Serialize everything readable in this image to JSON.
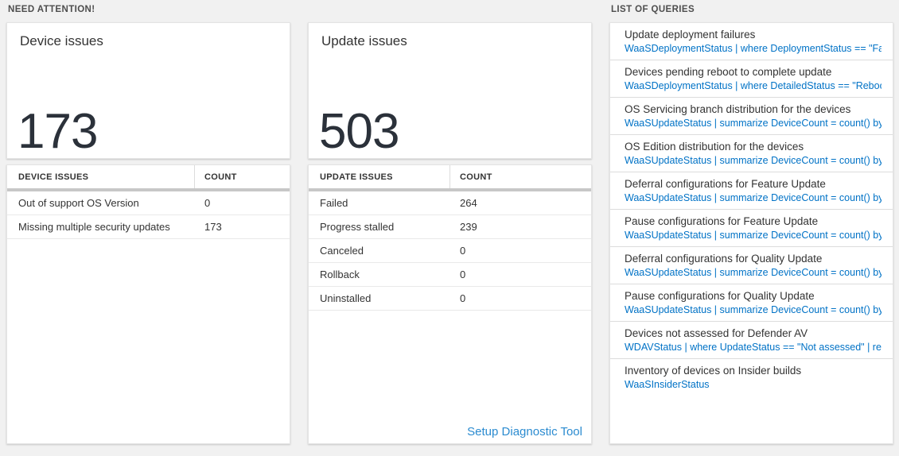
{
  "sections": {
    "need_attention": {
      "label": "NEED ATTENTION!",
      "device_card": {
        "title": "Device issues",
        "value": "173",
        "table": {
          "headers": [
            "DEVICE ISSUES",
            "COUNT"
          ],
          "rows": [
            {
              "label": "Out of support OS Version",
              "count": "0"
            },
            {
              "label": "Missing multiple security updates",
              "count": "173"
            }
          ]
        }
      },
      "update_card": {
        "title": "Update issues",
        "value": "503",
        "table": {
          "headers": [
            "UPDATE ISSUES",
            "COUNT"
          ],
          "rows": [
            {
              "label": "Failed",
              "count": "264"
            },
            {
              "label": "Progress stalled",
              "count": "239"
            },
            {
              "label": "Canceled",
              "count": "0"
            },
            {
              "label": "Rollback",
              "count": "0"
            },
            {
              "label": "Uninstalled",
              "count": "0"
            }
          ]
        },
        "footer_link": "Setup Diagnostic Tool"
      }
    },
    "queries": {
      "label": "LIST OF QUERIES",
      "items": [
        {
          "title": "Update deployment failures",
          "query": "WaaSDeploymentStatus | where DeploymentStatus == \"Failed\" |..."
        },
        {
          "title": "Devices pending reboot to complete update",
          "query": "WaaSDeploymentStatus | where DetailedStatus == \"Reboot pend..."
        },
        {
          "title": "OS Servicing branch distribution for the devices",
          "query": "WaaSUpdateStatus | summarize DeviceCount = count() by OSSer..."
        },
        {
          "title": "OS Edition distribution for the devices",
          "query": "WaaSUpdateStatus | summarize DeviceCount = count() by OSEdit..."
        },
        {
          "title": "Deferral configurations for Feature Update",
          "query": "WaaSUpdateStatus | summarize DeviceCount = count() by Featur..."
        },
        {
          "title": "Pause configurations for Feature Update",
          "query": "WaaSUpdateStatus | summarize DeviceCount = count() by Featur..."
        },
        {
          "title": "Deferral configurations for Quality Update",
          "query": "WaaSUpdateStatus | summarize DeviceCount = count() by Qualit..."
        },
        {
          "title": "Pause configurations for Quality Update",
          "query": "WaaSUpdateStatus | summarize DeviceCount = count() by Qualit..."
        },
        {
          "title": "Devices not assessed for Defender AV",
          "query": "WDAVStatus | where UpdateStatus == \"Not assessed\" | render ta..."
        },
        {
          "title": "Inventory of devices on Insider builds",
          "query": "WaaSInsiderStatus"
        }
      ]
    }
  },
  "colors": {
    "query_blue": "#0072c6",
    "link_blue": "#2b8bd0",
    "number_dark": "#2b313a",
    "header_bar_gray": "#c7c7c7",
    "page_bg": "#f1f1f1"
  }
}
